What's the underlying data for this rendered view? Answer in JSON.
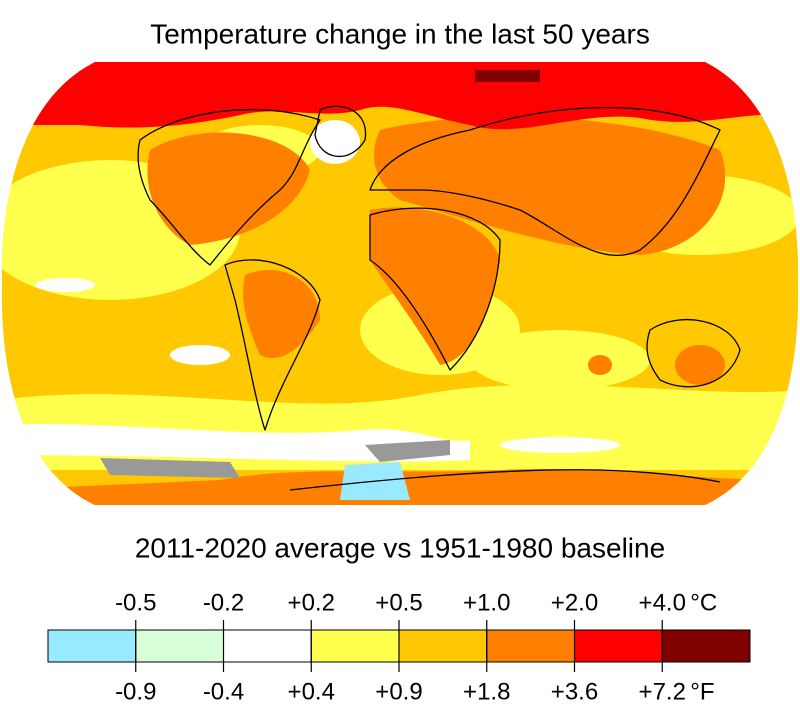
{
  "title": "Temperature change in the last 50 years",
  "subtitle": "2011-2020 average vs 1951-1980 baseline",
  "legend": {
    "colors": [
      "#99eaff",
      "#d9ffd9",
      "#ffffff",
      "#ffff4d",
      "#ffc800",
      "#ff8000",
      "#ff0000",
      "#800000"
    ],
    "celsius": {
      "labels": [
        "-0.5",
        "-0.2",
        "+0.2",
        "+0.5",
        "+1.0",
        "+2.0",
        "+4.0"
      ],
      "unit": "°C"
    },
    "fahrenheit": {
      "labels": [
        "-0.9",
        "-0.4",
        "+0.4",
        "+0.9",
        "+1.8",
        "+3.6",
        "+7.2"
      ],
      "unit": "°F"
    }
  }
}
